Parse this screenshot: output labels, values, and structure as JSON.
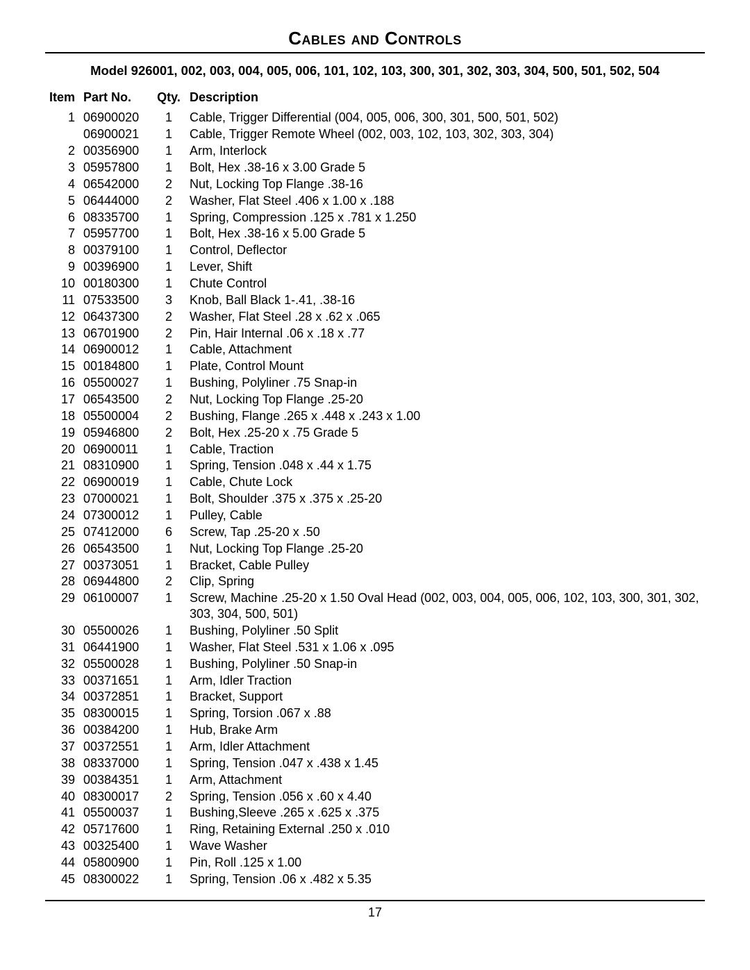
{
  "title": "Cables and Controls",
  "subtitle": "Model 926001, 002, 003, 004, 005, 006, 101, 102, 103, 300, 301, 302, 303, 304, 500, 501, 502, 504",
  "page_number": "17",
  "headers": {
    "item": "Item",
    "part": "Part No.",
    "qty": "Qty.",
    "desc": "Description"
  },
  "rows": [
    {
      "item": "1",
      "part": "06900020",
      "qty": "1",
      "desc": "Cable, Trigger Differential (004, 005, 006, 300, 301, 500, 501, 502)"
    },
    {
      "item": "",
      "part": "06900021",
      "qty": "1",
      "desc": "Cable, Trigger Remote Wheel (002, 003, 102, 103, 302, 303, 304)"
    },
    {
      "item": "2",
      "part": "00356900",
      "qty": "1",
      "desc": "Arm, Interlock"
    },
    {
      "item": "3",
      "part": "05957800",
      "qty": "1",
      "desc": "Bolt, Hex .38-16 x 3.00 Grade 5"
    },
    {
      "item": "4",
      "part": "06542000",
      "qty": "2",
      "desc": "Nut, Locking Top Flange .38-16"
    },
    {
      "item": "5",
      "part": "06444000",
      "qty": "2",
      "desc": "Washer, Flat Steel .406 x 1.00 x .188"
    },
    {
      "item": "6",
      "part": "08335700",
      "qty": "1",
      "desc": "Spring, Compression .125 x .781 x 1.250"
    },
    {
      "item": "7",
      "part": "05957700",
      "qty": "1",
      "desc": "Bolt, Hex .38-16 x 5.00 Grade 5"
    },
    {
      "item": "8",
      "part": "00379100",
      "qty": "1",
      "desc": "Control, Deflector"
    },
    {
      "item": "9",
      "part": "00396900",
      "qty": "1",
      "desc": "Lever, Shift"
    },
    {
      "item": "10",
      "part": "00180300",
      "qty": "1",
      "desc": "Chute Control"
    },
    {
      "item": "11",
      "part": "07533500",
      "qty": "3",
      "desc": "Knob, Ball Black 1-.41, .38-16"
    },
    {
      "item": "12",
      "part": "06437300",
      "qty": "2",
      "desc": "Washer, Flat Steel .28 x .62 x .065"
    },
    {
      "item": "13",
      "part": "06701900",
      "qty": "2",
      "desc": "Pin, Hair Internal .06 x .18 x .77"
    },
    {
      "item": "14",
      "part": "06900012",
      "qty": "1",
      "desc": "Cable, Attachment"
    },
    {
      "item": "15",
      "part": "00184800",
      "qty": "1",
      "desc": "Plate, Control Mount"
    },
    {
      "item": "16",
      "part": "05500027",
      "qty": "1",
      "desc": "Bushing, Polyliner .75 Snap-in"
    },
    {
      "item": "17",
      "part": "06543500",
      "qty": "2",
      "desc": "Nut, Locking Top Flange .25-20"
    },
    {
      "item": "18",
      "part": "05500004",
      "qty": "2",
      "desc": "Bushing, Flange .265 x .448 x .243 x 1.00"
    },
    {
      "item": "19",
      "part": "05946800",
      "qty": "2",
      "desc": "Bolt, Hex .25-20 x .75 Grade 5"
    },
    {
      "item": "20",
      "part": "06900011",
      "qty": "1",
      "desc": "Cable, Traction"
    },
    {
      "item": "21",
      "part": "08310900",
      "qty": "1",
      "desc": "Spring, Tension .048 x .44 x 1.75"
    },
    {
      "item": "22",
      "part": "06900019",
      "qty": "1",
      "desc": "Cable, Chute Lock"
    },
    {
      "item": "23",
      "part": "07000021",
      "qty": "1",
      "desc": "Bolt, Shoulder .375 x .375 x .25-20"
    },
    {
      "item": "24",
      "part": "07300012",
      "qty": "1",
      "desc": "Pulley, Cable"
    },
    {
      "item": "25",
      "part": "07412000",
      "qty": "6",
      "desc": "Screw, Tap .25-20 x .50"
    },
    {
      "item": "26",
      "part": "06543500",
      "qty": "1",
      "desc": "Nut, Locking Top Flange .25-20"
    },
    {
      "item": "27",
      "part": "00373051",
      "qty": "1",
      "desc": "Bracket, Cable Pulley"
    },
    {
      "item": "28",
      "part": "06944800",
      "qty": "2",
      "desc": "Clip, Spring"
    },
    {
      "item": "29",
      "part": "06100007",
      "qty": "1",
      "desc": "Screw, Machine .25-20 x 1.50 Oval Head (002, 003, 004, 005, 006, 102, 103, 300, 301, 302, 303, 304, 500, 501)"
    },
    {
      "item": "30",
      "part": "05500026",
      "qty": "1",
      "desc": "Bushing, Polyliner .50 Split"
    },
    {
      "item": "31",
      "part": "06441900",
      "qty": "1",
      "desc": "Washer, Flat Steel .531 x 1.06 x .095"
    },
    {
      "item": "32",
      "part": "05500028",
      "qty": "1",
      "desc": "Bushing, Polyliner .50 Snap-in"
    },
    {
      "item": "33",
      "part": "00371651",
      "qty": "1",
      "desc": "Arm, Idler Traction"
    },
    {
      "item": "34",
      "part": "00372851",
      "qty": "1",
      "desc": "Bracket, Support"
    },
    {
      "item": "35",
      "part": "08300015",
      "qty": "1",
      "desc": "Spring, Torsion .067 x .88"
    },
    {
      "item": "36",
      "part": "00384200",
      "qty": "1",
      "desc": "Hub, Brake Arm"
    },
    {
      "item": "37",
      "part": "00372551",
      "qty": "1",
      "desc": "Arm, Idler Attachment"
    },
    {
      "item": "38",
      "part": "08337000",
      "qty": "1",
      "desc": "Spring, Tension .047 x .438 x 1.45"
    },
    {
      "item": "39",
      "part": "00384351",
      "qty": "1",
      "desc": "Arm, Attachment"
    },
    {
      "item": "40",
      "part": "08300017",
      "qty": "2",
      "desc": "Spring, Tension .056 x .60 x 4.40"
    },
    {
      "item": "41",
      "part": "05500037",
      "qty": "1",
      "desc": "Bushing,Sleeve .265 x .625 x .375"
    },
    {
      "item": "42",
      "part": "05717600",
      "qty": "1",
      "desc": "Ring, Retaining External .250 x .010"
    },
    {
      "item": "43",
      "part": "00325400",
      "qty": "1",
      "desc": "Wave Washer"
    },
    {
      "item": "44",
      "part": "05800900",
      "qty": "1",
      "desc": "Pin, Roll .125 x 1.00"
    },
    {
      "item": "45",
      "part": "08300022",
      "qty": "1",
      "desc": "Spring, Tension .06 x .482 x 5.35"
    }
  ]
}
